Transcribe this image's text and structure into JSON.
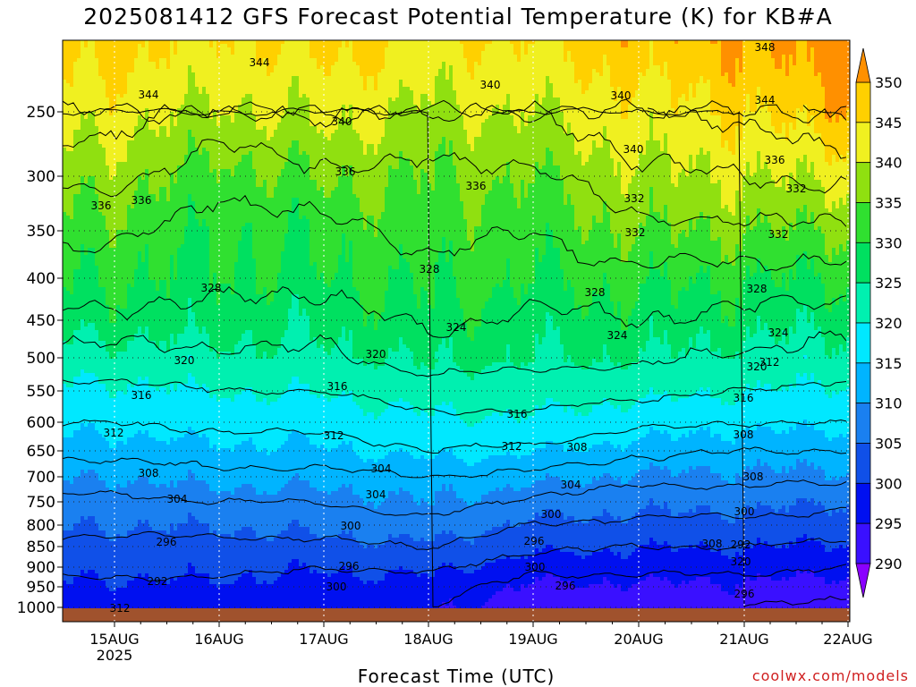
{
  "title": "2025081412 GFS Forecast Potential Temperature (K) for KB#A",
  "xlabel": "Forecast Time (UTC)",
  "credit": "coolwx.com/models",
  "chart_data": {
    "type": "heatmap",
    "title": "2025081412 GFS Forecast Potential Temperature (K) for KB#A",
    "xlabel": "Forecast Time (UTC)",
    "ylabel": "",
    "x_ticks": [
      "15AUG",
      "16AUG",
      "17AUG",
      "18AUG",
      "19AUG",
      "20AUG",
      "21AUG",
      "22AUG"
    ],
    "x_tick_sublabel": "2025",
    "x_tick_sublabel_under": "15AUG",
    "y_ticks": [
      250,
      300,
      350,
      400,
      450,
      500,
      550,
      600,
      650,
      700,
      750,
      800,
      850,
      900,
      950,
      1000
    ],
    "y_axis": "pressure (hPa), decreasing upward",
    "colorbar": {
      "ticks": [
        290,
        295,
        300,
        305,
        310,
        315,
        320,
        325,
        330,
        335,
        340,
        345,
        350
      ],
      "colors": [
        "#8a00ff",
        "#3a10ff",
        "#0010f0",
        "#1050e8",
        "#1a80f0",
        "#00b4ff",
        "#00e8ff",
        "#00f0b0",
        "#00e060",
        "#30e030",
        "#90e010",
        "#f0f020",
        "#ffd000",
        "#ff9000"
      ]
    },
    "contour_interval": 4,
    "contour_labels": [
      "348",
      "344",
      "340",
      "344",
      "340",
      "344",
      "340",
      "340",
      "336",
      "336",
      "336",
      "332",
      "336",
      "336",
      "332",
      "332",
      "332",
      "328",
      "328",
      "328",
      "328",
      "324",
      "324",
      "324",
      "320",
      "320",
      "320",
      "316",
      "316",
      "316",
      "316",
      "312",
      "312",
      "312",
      "308",
      "308",
      "308",
      "304",
      "304",
      "308",
      "304",
      "304",
      "300",
      "300",
      "300",
      "296",
      "296",
      "292",
      "292",
      "296",
      "300",
      "300",
      "296",
      "296",
      "312",
      "320",
      "312",
      "308"
    ],
    "cross_sections": [
      {
        "x": "15AUG 00Z",
        "values": [
          342,
          337,
          333,
          330,
          327,
          322,
          319,
          316,
          313,
          310,
          307,
          305,
          303,
          301,
          299,
          297
        ]
      },
      {
        "x": "16AUG 00Z",
        "values": [
          339,
          333,
          330,
          329,
          327,
          323,
          320,
          317,
          314,
          311,
          308,
          305,
          303,
          301,
          299,
          297
        ]
      },
      {
        "x": "17AUG 00Z",
        "values": [
          341,
          335,
          331,
          329,
          326,
          323,
          320,
          317,
          314,
          311,
          308,
          306,
          303,
          300,
          298,
          296
        ]
      },
      {
        "x": "18AUG 00Z",
        "values": [
          339,
          335,
          333,
          331,
          329,
          326,
          322,
          319,
          316,
          312,
          310,
          307,
          304,
          301,
          298,
          296
        ]
      },
      {
        "x": "19AUG 00Z",
        "values": [
          340,
          335,
          332,
          330,
          327,
          325,
          322,
          319,
          315,
          311,
          307,
          304,
          301,
          297,
          294,
          292
        ]
      },
      {
        "x": "20AUG 00Z",
        "values": [
          343,
          339,
          335,
          331,
          328,
          325,
          321,
          317,
          313,
          309,
          306,
          303,
          300,
          297,
          294,
          292
        ]
      },
      {
        "x": "21AUG 00Z",
        "values": [
          345,
          340,
          335,
          330,
          327,
          323,
          320,
          316,
          312,
          309,
          306,
          303,
          300,
          297,
          294,
          292
        ]
      },
      {
        "x": "22AUG 00Z",
        "values": [
          349,
          341,
          335,
          330,
          326,
          322,
          319,
          316,
          312,
          309,
          305,
          302,
          299,
          296,
          293,
          291
        ]
      }
    ],
    "grid": "dotted",
    "legend": "colorbar right"
  }
}
